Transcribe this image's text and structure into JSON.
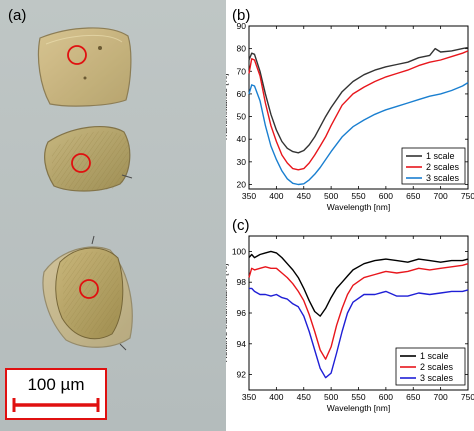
{
  "figure": {
    "panel_a_label": "(a)",
    "panel_b_label": "(b)",
    "panel_c_label": "(c)",
    "scale_bar_label": "100 µm"
  },
  "colors": {
    "micro_background": "#b9c1c1",
    "scale_box": "#e01010",
    "marker_circle": "#e01010",
    "series_black": "#333333",
    "series_red": "#e8161c",
    "series_blue_b": "#1a7fd0",
    "series_blue_c": "#1f1fd6",
    "series_black_c": "#000000"
  },
  "chart_data": [
    {
      "id": "b",
      "type": "line",
      "xlabel": "Wavelength [nm]",
      "ylabel": "Transmittance [%]",
      "xlim": [
        350,
        750
      ],
      "ylim": [
        18,
        90
      ],
      "xticks": [
        350,
        400,
        450,
        500,
        550,
        600,
        650,
        700,
        750
      ],
      "yticks": [
        20,
        30,
        40,
        50,
        60,
        70,
        80,
        90
      ],
      "grid": false,
      "legend_position": "bottom-right",
      "series": [
        {
          "name": "1 scale",
          "color": "#333333",
          "x": [
            350,
            355,
            360,
            370,
            380,
            390,
            400,
            410,
            420,
            430,
            440,
            450,
            460,
            470,
            480,
            490,
            500,
            520,
            540,
            560,
            580,
            600,
            620,
            640,
            660,
            680,
            690,
            700,
            720,
            740,
            750
          ],
          "y": [
            75,
            78,
            77.5,
            70,
            60,
            51,
            44,
            39,
            36,
            34.5,
            34,
            35,
            37.5,
            41,
            45.5,
            50,
            54,
            61,
            65.5,
            68.5,
            70.5,
            72,
            73,
            74,
            76,
            77,
            80,
            78.5,
            79,
            80,
            80.5
          ]
        },
        {
          "name": "2 scales",
          "color": "#e8161c",
          "x": [
            350,
            355,
            360,
            370,
            380,
            390,
            400,
            410,
            420,
            430,
            440,
            450,
            460,
            470,
            480,
            490,
            500,
            520,
            540,
            560,
            580,
            600,
            620,
            640,
            660,
            680,
            700,
            720,
            740,
            750
          ],
          "y": [
            69,
            75.5,
            75,
            68,
            56,
            46,
            39,
            33,
            29.5,
            27,
            26.5,
            27,
            29.5,
            33,
            37,
            41,
            46,
            55,
            60,
            63,
            65.5,
            67.5,
            69,
            70.5,
            72.5,
            74,
            75,
            76.5,
            78,
            79
          ]
        },
        {
          "name": "3 scales",
          "color": "#1a7fd0",
          "x": [
            350,
            355,
            360,
            370,
            380,
            390,
            400,
            410,
            420,
            430,
            440,
            450,
            460,
            470,
            480,
            490,
            500,
            520,
            540,
            560,
            580,
            600,
            620,
            640,
            660,
            680,
            700,
            720,
            740,
            750
          ],
          "y": [
            60,
            64,
            63.5,
            57,
            46,
            37,
            31,
            26,
            22.5,
            20.5,
            20,
            20.3,
            22,
            24.5,
            27.5,
            31,
            34.5,
            41,
            45.5,
            48.5,
            51,
            53,
            54.5,
            56,
            57.5,
            59,
            60,
            61.5,
            63.5,
            65
          ]
        }
      ]
    },
    {
      "id": "c",
      "type": "line",
      "xlabel": "Wavelength [nm]",
      "ylabel": "Relative transmittance [%]",
      "xlim": [
        350,
        750
      ],
      "ylim": [
        91,
        101
      ],
      "xticks": [
        350,
        400,
        450,
        500,
        550,
        600,
        650,
        700,
        750
      ],
      "yticks": [
        92,
        94,
        96,
        98,
        100
      ],
      "grid": false,
      "legend_position": "bottom-right",
      "series": [
        {
          "name": "1 scale",
          "color": "#000000",
          "x": [
            350,
            355,
            360,
            370,
            380,
            390,
            400,
            410,
            420,
            430,
            440,
            450,
            460,
            470,
            480,
            490,
            500,
            510,
            520,
            530,
            540,
            560,
            580,
            600,
            620,
            640,
            660,
            680,
            700,
            720,
            740,
            750
          ],
          "y": [
            99.6,
            99.8,
            99.6,
            99.8,
            99.9,
            100.0,
            99.9,
            99.6,
            99.2,
            98.8,
            98.3,
            97.6,
            96.8,
            96.1,
            95.8,
            96.3,
            97.0,
            97.6,
            98.0,
            98.4,
            98.8,
            99.2,
            99.4,
            99.5,
            99.4,
            99.3,
            99.5,
            99.4,
            99.3,
            99.4,
            99.4,
            99.5
          ]
        },
        {
          "name": "2 scales",
          "color": "#e8161c",
          "x": [
            350,
            355,
            360,
            370,
            380,
            390,
            400,
            410,
            420,
            430,
            440,
            450,
            460,
            470,
            480,
            490,
            500,
            510,
            520,
            530,
            540,
            560,
            580,
            600,
            620,
            640,
            660,
            680,
            700,
            720,
            740,
            750
          ],
          "y": [
            98.3,
            98.9,
            98.8,
            98.9,
            99.0,
            98.9,
            98.9,
            98.6,
            98.3,
            97.9,
            97.4,
            96.8,
            95.9,
            94.8,
            93.6,
            93.0,
            93.8,
            95.2,
            96.3,
            97.2,
            97.8,
            98.3,
            98.5,
            98.7,
            98.6,
            98.7,
            98.9,
            98.8,
            98.9,
            99.0,
            99.1,
            99.2
          ]
        },
        {
          "name": "3 scales",
          "color": "#1f1fd6",
          "x": [
            350,
            355,
            360,
            370,
            380,
            390,
            400,
            410,
            420,
            430,
            440,
            450,
            460,
            470,
            480,
            490,
            500,
            510,
            520,
            530,
            540,
            560,
            580,
            600,
            620,
            640,
            660,
            680,
            700,
            720,
            740,
            750
          ],
          "y": [
            97.6,
            97.6,
            97.4,
            97.2,
            97.2,
            97.1,
            97.2,
            97.0,
            96.9,
            96.6,
            96.4,
            95.8,
            94.8,
            93.6,
            92.4,
            91.8,
            92.1,
            93.4,
            94.8,
            96.0,
            96.7,
            97.2,
            97.2,
            97.4,
            97.1,
            97.1,
            97.3,
            97.2,
            97.3,
            97.4,
            97.4,
            97.5
          ]
        }
      ]
    }
  ]
}
